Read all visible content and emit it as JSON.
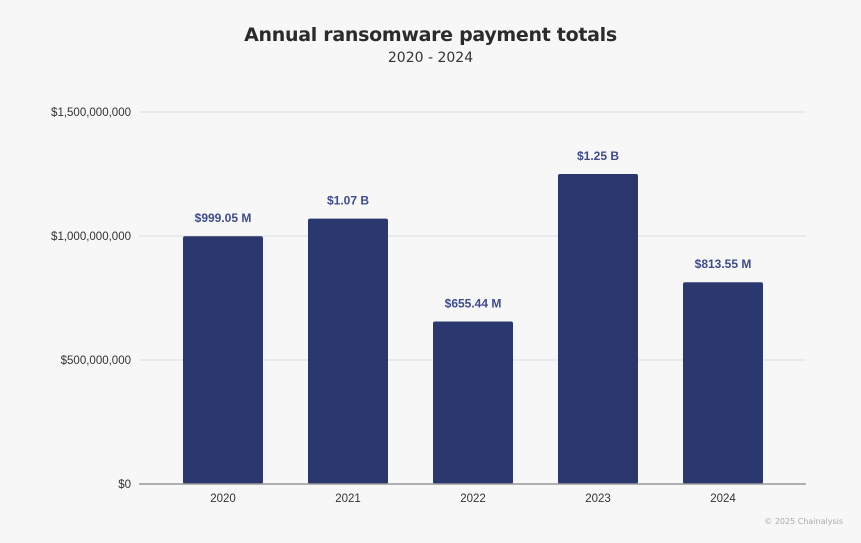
{
  "credit": "© 2025 Chainalysis",
  "colors": {
    "bar": "#2b3870",
    "data_label": "#3e4b88",
    "background": "#f7f7f7",
    "grid": "#dcdcdc"
  },
  "chart_data": {
    "type": "bar",
    "title": "Annual ransomware payment totals",
    "subtitle": "2020 - 2024",
    "xlabel": "",
    "ylabel": "",
    "categories": [
      "2020",
      "2021",
      "2022",
      "2023",
      "2024"
    ],
    "values": [
      999050000,
      1070000000,
      655440000,
      1250000000,
      813550000
    ],
    "data_labels": [
      "$999.05 M",
      "$1.07 B",
      "$655.44 M",
      "$1.25 B",
      "$813.55 M"
    ],
    "ylim": [
      0,
      1500000000
    ],
    "yticks": [
      0,
      500000000,
      1000000000,
      1500000000
    ],
    "ytick_labels": [
      "$0",
      "$500,000,000",
      "$1,000,000,000",
      "$1,500,000,000"
    ],
    "grid": true,
    "legend": "none"
  }
}
